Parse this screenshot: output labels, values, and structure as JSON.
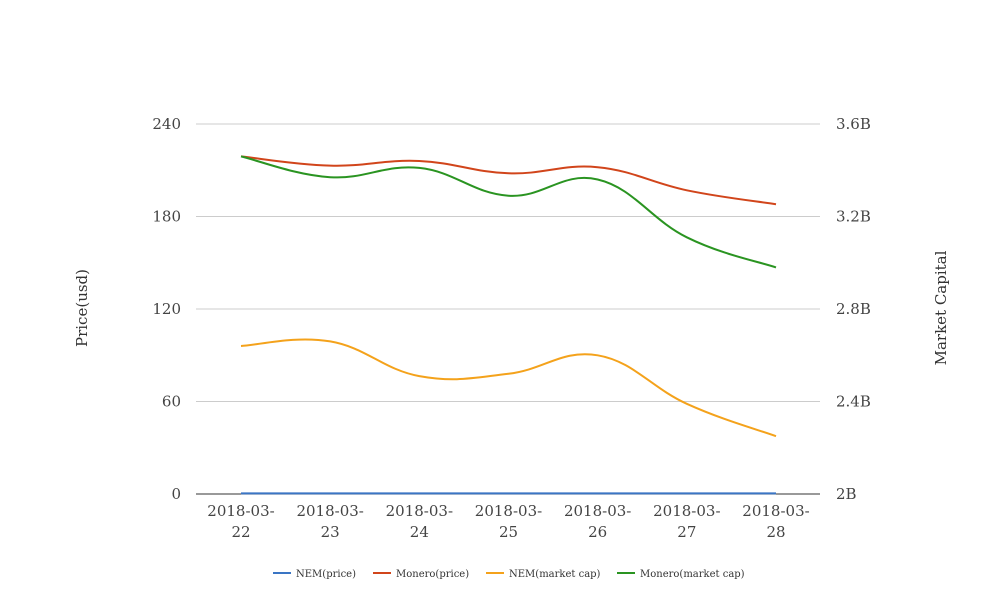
{
  "chart_data": {
    "type": "line",
    "categories": [
      "2018-03-22",
      "2018-03-23",
      "2018-03-24",
      "2018-03-25",
      "2018-03-26",
      "2018-03-27",
      "2018-03-28"
    ],
    "category_labels": [
      [
        "2018-03-",
        "22"
      ],
      [
        "2018-03-",
        "23"
      ],
      [
        "2018-03-",
        "24"
      ],
      [
        "2018-03-",
        "25"
      ],
      [
        "2018-03-",
        "26"
      ],
      [
        "2018-03-",
        "27"
      ],
      [
        "2018-03-",
        "28"
      ]
    ],
    "y_left": {
      "label": "Price(usd)",
      "ticks": [
        "0",
        "60",
        "120",
        "180",
        "240"
      ],
      "tick_values": [
        0,
        60,
        120,
        180,
        240
      ],
      "range": [
        0,
        240
      ]
    },
    "y_right": {
      "label": "Market Capital",
      "ticks": [
        "2B",
        "2.4B",
        "2.8B",
        "3.2B",
        "3.6B"
      ],
      "tick_values": [
        2000000000,
        2400000000,
        2800000000,
        3200000000,
        3600000000
      ],
      "range": [
        2000000000,
        3600000000
      ]
    },
    "series": [
      {
        "name": "NEM(price)",
        "axis": "left",
        "color": "#3a75c4",
        "values": [
          0.4,
          0.4,
          0.4,
          0.4,
          0.4,
          0.4,
          0.4
        ]
      },
      {
        "name": "Monero(price)",
        "axis": "left",
        "color": "#d1451b",
        "values": [
          219,
          213,
          216,
          208,
          212,
          197,
          188
        ]
      },
      {
        "name": "NEM(market cap)",
        "axis": "right",
        "color": "#f4a21b",
        "values": [
          2640000000,
          2660000000,
          2510000000,
          2520000000,
          2600000000,
          2390000000,
          2250000000
        ]
      },
      {
        "name": "Monero(market cap)",
        "axis": "right",
        "color": "#2a9421",
        "values": [
          3460000000,
          3370000000,
          3410000000,
          3290000000,
          3360000000,
          3110000000,
          2980000000
        ]
      }
    ],
    "legend_position": "bottom",
    "grid": true
  }
}
